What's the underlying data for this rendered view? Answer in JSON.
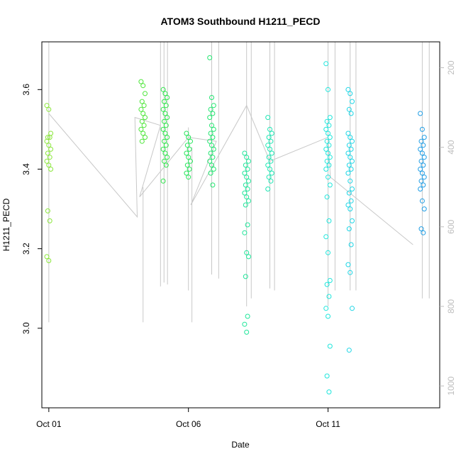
{
  "chart_data": {
    "type": "scatter",
    "title": "ATOM3 Southbound H1211_PECD",
    "xlabel": "Date",
    "ylabel": "H1211_PECD",
    "xlim": [
      "2016-09-30T18:00",
      "2016-10-15T00:00"
    ],
    "ylim": [
      2.8,
      3.72
    ],
    "yticks": [
      3.0,
      3.2,
      3.4,
      3.6
    ],
    "xticks": [
      {
        "date": "2016-10-01",
        "label": "Oct 01"
      },
      {
        "date": "2016-10-06",
        "label": "Oct 06"
      },
      {
        "date": "2016-10-11",
        "label": "Oct 11"
      }
    ],
    "right_axis": {
      "label": "",
      "ticks": [
        200,
        400,
        600,
        800,
        1000
      ],
      "lim": [
        1055,
        135
      ],
      "reversed": true,
      "color": "#bdbdbd"
    },
    "marker": "open-circle",
    "point_groups": [
      {
        "date": "2016-10-01T00:00",
        "color": "#8ae63a",
        "values": [
          3.56,
          3.55,
          3.49,
          3.48,
          3.48,
          3.47,
          3.46,
          3.45,
          3.44,
          3.43,
          3.42,
          3.41,
          3.4,
          3.295,
          3.27,
          3.18,
          3.17
        ]
      },
      {
        "date": "2016-10-04T09:00",
        "color": "#4ee63a",
        "values": [
          3.62,
          3.61,
          3.59,
          3.57,
          3.56,
          3.55,
          3.54,
          3.53,
          3.52,
          3.51,
          3.5,
          3.49,
          3.48,
          3.47
        ]
      },
      {
        "date": "2016-10-05T04:00",
        "color": "#2ee64a",
        "values": [
          3.6,
          3.59,
          3.58,
          3.57,
          3.56,
          3.55,
          3.54,
          3.53,
          3.52,
          3.51,
          3.5,
          3.49,
          3.48,
          3.47,
          3.46,
          3.45,
          3.44,
          3.43,
          3.42,
          3.41,
          3.37
        ]
      },
      {
        "date": "2016-10-06T00:00",
        "color": "#25e65a",
        "values": [
          3.49,
          3.48,
          3.47,
          3.46,
          3.45,
          3.44,
          3.43,
          3.42,
          3.41,
          3.4,
          3.39,
          3.38
        ]
      },
      {
        "date": "2016-10-06T20:00",
        "color": "#22e670",
        "values": [
          3.68,
          3.58,
          3.56,
          3.55,
          3.54,
          3.53,
          3.51,
          3.5,
          3.49,
          3.48,
          3.47,
          3.46,
          3.45,
          3.44,
          3.43,
          3.42,
          3.41,
          3.4,
          3.39,
          3.36
        ]
      },
      {
        "date": "2016-10-08T02:00",
        "color": "#1fe69a",
        "values": [
          3.44,
          3.43,
          3.42,
          3.41,
          3.4,
          3.39,
          3.38,
          3.37,
          3.36,
          3.35,
          3.34,
          3.33,
          3.32,
          3.31,
          3.26,
          3.24,
          3.19,
          3.18,
          3.13,
          3.03,
          3.01,
          2.99
        ]
      },
      {
        "date": "2016-10-08T22:00",
        "color": "#1fe6b4",
        "values": [
          3.53,
          3.5,
          3.49,
          3.48,
          3.47,
          3.46,
          3.45,
          3.44,
          3.43,
          3.42,
          3.41,
          3.4,
          3.39,
          3.38,
          3.37,
          3.35
        ]
      },
      {
        "date": "2016-10-11T00:00",
        "color": "#1fe6dc",
        "values": [
          3.665,
          3.6,
          3.53,
          3.52,
          3.51,
          3.5,
          3.49,
          3.48,
          3.47,
          3.46,
          3.45,
          3.44,
          3.43,
          3.42,
          3.41,
          3.4,
          3.38,
          3.36,
          3.33,
          3.27,
          3.23,
          3.19,
          3.12,
          3.11,
          3.08,
          3.05,
          3.03,
          2.955,
          2.88,
          2.84
        ]
      },
      {
        "date": "2016-10-11T19:00",
        "color": "#1fd6e6",
        "values": [
          3.6,
          3.59,
          3.57,
          3.55,
          3.54,
          3.49,
          3.48,
          3.47,
          3.46,
          3.45,
          3.44,
          3.43,
          3.42,
          3.41,
          3.4,
          3.39,
          3.37,
          3.35,
          3.34,
          3.32,
          3.31,
          3.3,
          3.27,
          3.25,
          3.21,
          3.16,
          3.14,
          3.05,
          2.945
        ]
      },
      {
        "date": "2016-10-14T09:00",
        "color": "#1f9ee6",
        "values": [
          3.54,
          3.5,
          3.48,
          3.47,
          3.46,
          3.45,
          3.44,
          3.43,
          3.42,
          3.41,
          3.4,
          3.39,
          3.38,
          3.37,
          3.36,
          3.35,
          3.32,
          3.3,
          3.25,
          3.24
        ]
      }
    ],
    "gray_line_color": "#c8c8c8",
    "gray_track": [
      {
        "date": "2016-10-01T00:00",
        "value": 3.54
      },
      {
        "date": "2016-10-04T04:00",
        "value": 3.28
      },
      {
        "date": "2016-10-04T02:00",
        "value": 3.53
      },
      {
        "date": "2016-10-05T00:00",
        "value": 3.51
      },
      {
        "date": "2016-10-04T06:00",
        "value": 3.33
      },
      {
        "date": "2016-10-06T00:00",
        "value": 3.48
      },
      {
        "date": "2016-10-07T00:00",
        "value": 3.47
      },
      {
        "date": "2016-10-06T02:00",
        "value": 3.31
      },
      {
        "date": "2016-10-08T02:00",
        "value": 3.56
      },
      {
        "date": "2016-10-08T22:00",
        "value": 3.42
      },
      {
        "date": "2016-10-11T00:00",
        "value": 3.48
      },
      {
        "date": "2016-10-11T02:00",
        "value": 3.38
      },
      {
        "date": "2016-10-14T01:00",
        "value": 3.21
      }
    ],
    "vertical_profiles": [
      {
        "date": "2016-10-01T00:00",
        "top": 100,
        "bottom": 840
      },
      {
        "date": "2016-10-04T09:00",
        "top": 500,
        "bottom": 840
      },
      {
        "date": "2016-10-05T00:00",
        "top": 100,
        "bottom": 750
      },
      {
        "date": "2016-10-05T03:00",
        "top": 100,
        "bottom": 740
      },
      {
        "date": "2016-10-05T06:00",
        "top": 100,
        "bottom": 745
      },
      {
        "date": "2016-10-06T00:00",
        "top": 350,
        "bottom": 760
      },
      {
        "date": "2016-10-06T03:00",
        "top": 400,
        "bottom": 840
      },
      {
        "date": "2016-10-06T20:00",
        "top": 100,
        "bottom": 720
      },
      {
        "date": "2016-10-07T02:00",
        "top": 100,
        "bottom": 730
      },
      {
        "date": "2016-10-08T02:00",
        "top": 100,
        "bottom": 800
      },
      {
        "date": "2016-10-08T06:00",
        "top": 100,
        "bottom": 780
      },
      {
        "date": "2016-10-08T22:00",
        "top": 100,
        "bottom": 755
      },
      {
        "date": "2016-10-09T02:00",
        "top": 100,
        "bottom": 760
      },
      {
        "date": "2016-10-11T00:00",
        "top": 100,
        "bottom": 800
      },
      {
        "date": "2016-10-11T06:00",
        "top": 100,
        "bottom": 760
      },
      {
        "date": "2016-10-11T19:00",
        "top": 100,
        "bottom": 760
      },
      {
        "date": "2016-10-12T00:00",
        "top": 100,
        "bottom": 760
      },
      {
        "date": "2016-10-14T09:00",
        "top": 100,
        "bottom": 780
      },
      {
        "date": "2016-10-14T15:00",
        "top": 100,
        "bottom": 780
      }
    ],
    "grid": false,
    "legend": "none"
  }
}
